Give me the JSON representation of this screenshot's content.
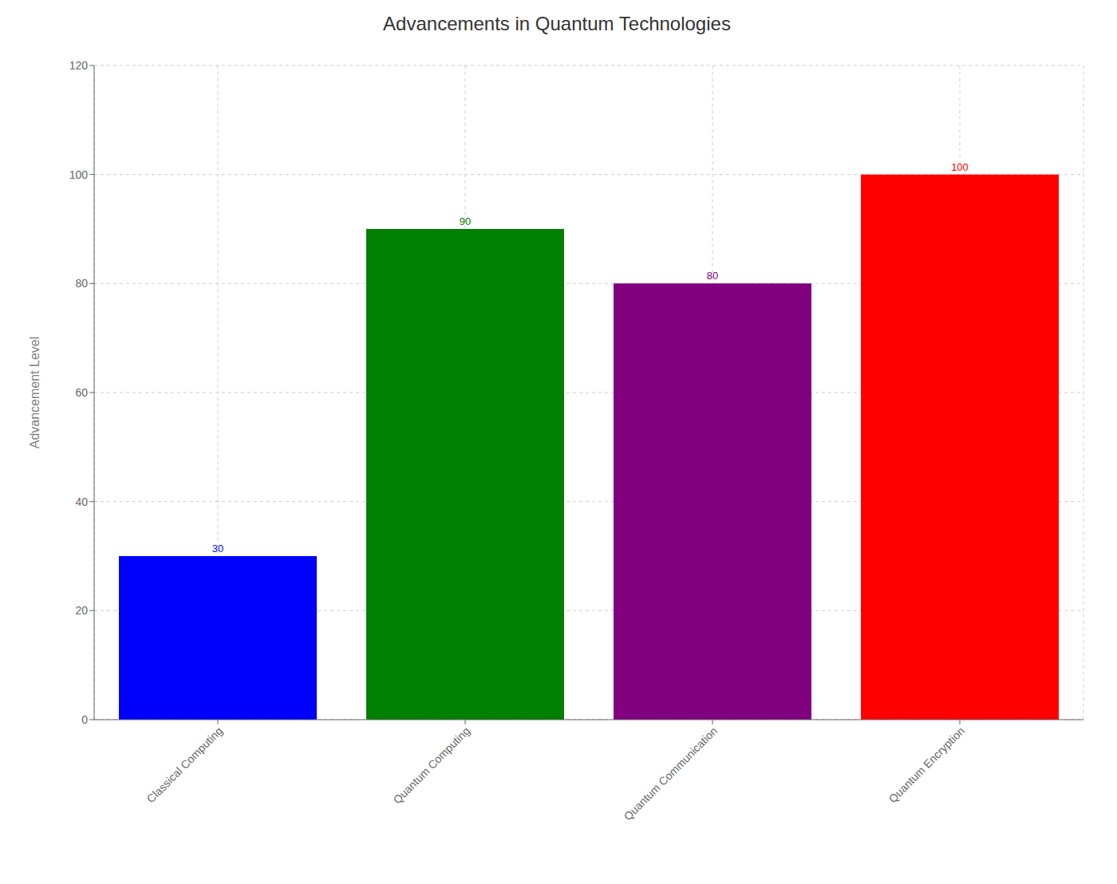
{
  "chart_data": {
    "type": "bar",
    "title": "Advancements in Quantum Technologies",
    "categories": [
      "Classical Computing",
      "Quantum Computing",
      "Quantum Communication",
      "Quantum Encryption"
    ],
    "values": [
      30,
      90,
      80,
      100
    ],
    "colors": [
      "#0000FF",
      "#008000",
      "#800080",
      "#FF0000"
    ],
    "ylabel": "Advancement Level",
    "ylim": [
      0,
      120
    ],
    "yticks": [
      0,
      20,
      40,
      60,
      80,
      100,
      120
    ],
    "grid": true,
    "data_labels": true
  }
}
